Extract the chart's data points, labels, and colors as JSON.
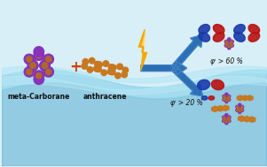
{
  "bg_color": "#d8eff8",
  "water_upper_color": "#8dd4ea",
  "water_lower_color": "#6bbedd",
  "water_shimmer": "#b0dff0",
  "label_carborane": "meta-Carborane",
  "label_anthracene": "anthracene",
  "label_phi1": "φⁱ > 60 %",
  "label_phi2": "φⁱ > 20 %",
  "plus_color": "#cc4400",
  "lightning_color": "#f5a800",
  "arrow_color": "#2d6fb5",
  "carborane_purple": "#8833bb",
  "carborane_orange": "#b06828",
  "anthracene_color": "#c87820",
  "orbital_blue": "#1a3aaa",
  "orbital_red": "#bb1111",
  "text_color": "#111111",
  "label_fontsize": 5.5,
  "phi_fontsize": 5.5
}
